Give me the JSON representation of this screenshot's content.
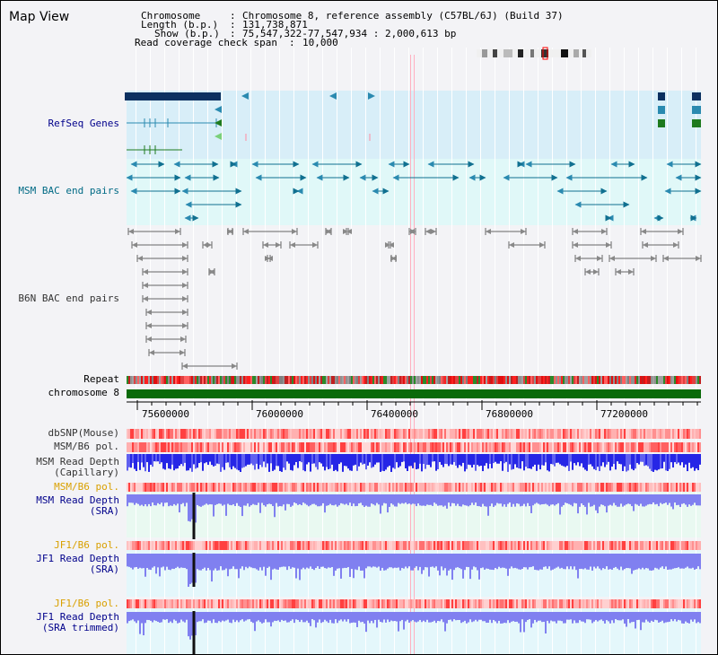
{
  "view": {
    "title": "Map View",
    "info": {
      "chromosome_label": "Chromosome",
      "chromosome_value": "Chromosome 8, reference assembly (C57BL/6J) (Build 37)",
      "length_label": "Length (b.p.)",
      "length_value": "131,738,871",
      "show_label": "Show (b.p.)",
      "show_value": "75,547,322-77,547,934 : 2,000,613 bp",
      "coverage_label": "Read coverage check span",
      "coverage_value": "10,000"
    }
  },
  "tracks": {
    "refseq": "RefSeq Genes",
    "msm_bac": "MSM BAC end pairs",
    "b6n_bac": "B6N BAC end pairs",
    "repeat": "Repeat",
    "chromosome": "chromosome 8",
    "dbsnp": "dbSNP(Mouse)",
    "msm_pol": "MSM/B6 pol.",
    "msm_depth_cap_1": "MSM Read Depth",
    "msm_depth_cap_2": "(Capillary)",
    "msm_pol_2": "MSM/B6 pol.",
    "msm_depth_sra_1": "MSM Read Depth",
    "msm_depth_sra_2": "(SRA)",
    "jf1_pol": "JF1/B6 pol.",
    "jf1_depth_sra_1": "JF1 Read Depth",
    "jf1_depth_sra_2": "(SRA)",
    "jf1_pol_2": "JF1/B6 pol.",
    "jf1_depth_trim_1": "JF1 Read Depth",
    "jf1_depth_trim_2": "(SRA trimmed)"
  },
  "axis": {
    "ticks": [
      "75600000",
      "76000000",
      "76400000",
      "76800000",
      "77200000"
    ]
  },
  "colors": {
    "background": "#f3f3f6",
    "refseq_bg": "#d8eef8",
    "bac_bg": "#e0f8f8",
    "depth_bg": "#e9f9f1",
    "gene_dark": "#0c3060",
    "gene_teal": "#2a8ab0",
    "gene_green": "#1e7a1e",
    "chromosome_bar": "#0a6a0a",
    "depth_blue": "#2626e6",
    "depth_lavender": "#8080f0",
    "pol_red": "#ee3030",
    "guide": "#ffb0c0"
  }
}
